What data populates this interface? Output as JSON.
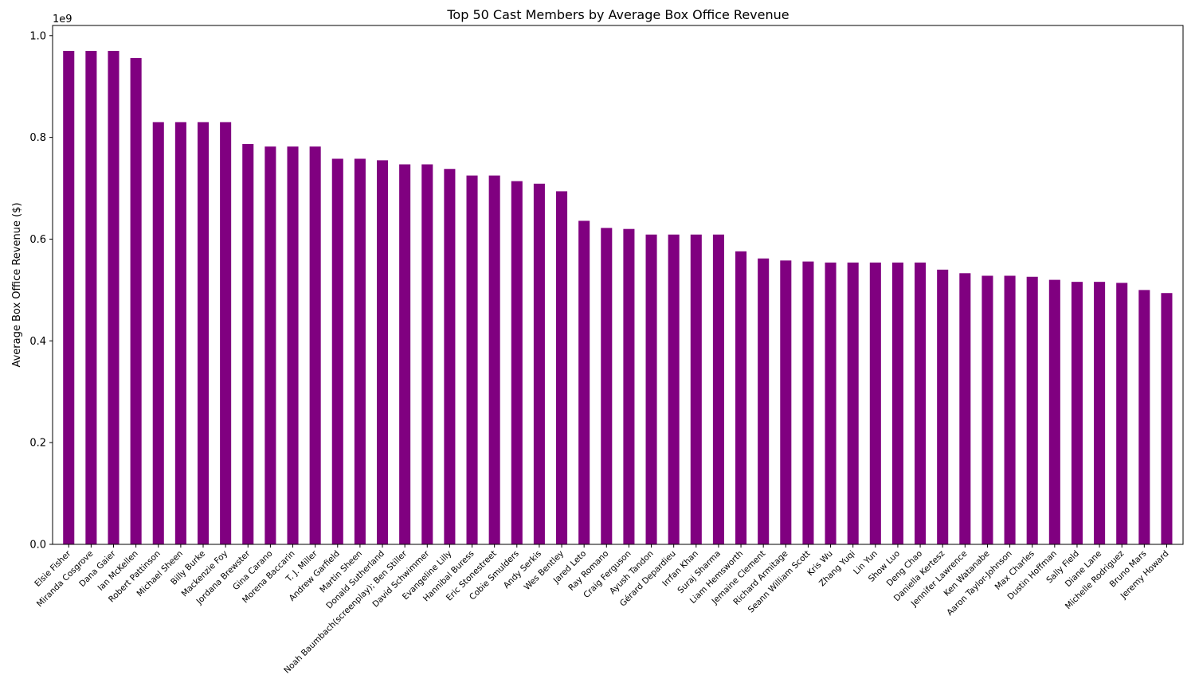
{
  "chart_data": {
    "type": "bar",
    "title": "Top 50 Cast Members by Average Box Office Revenue",
    "xlabel": "",
    "ylabel": "Average Box Office Revenue ($)",
    "y_scale_label": "1e9",
    "ylim": [
      0,
      1.02
    ],
    "y_ticks": [
      0.0,
      0.2,
      0.4,
      0.6,
      0.8,
      1.0
    ],
    "y_tick_labels": [
      "0.0",
      "0.2",
      "0.4",
      "0.6",
      "0.8",
      "1.0"
    ],
    "bar_color": "#800080",
    "grid": false,
    "categories": [
      "Elsie Fisher",
      "Miranda Cosgrove",
      "Dana Gaier",
      "Ian McKellen",
      "Robert Pattinson",
      "Michael Sheen",
      "Billy Burke",
      "Mackenzie Foy",
      "Jordana Brewster",
      "Gina Carano",
      "Morena Baccarin",
      "T. J. Miller",
      "Andrew Garfield",
      "Martin Sheen",
      "Donald Sutherland",
      "Noah Baumbach(screenplay); Ben Stiller",
      "David Schwimmer",
      "Evangeline Lilly",
      "Hannibal Buress",
      "Eric Stonestreet",
      "Cobie Smulders",
      "Andy Serkis",
      "Wes Bentley",
      "Jared Leto",
      "Ray Romano",
      "Craig Ferguson",
      "Ayush Tandon",
      "Gérard Depardieu",
      "Irrfan Khan",
      "Suraj Sharma",
      "Liam Hemsworth",
      "Jemaine Clement",
      "Richard Armitage",
      "Seann William Scott",
      "Kris Wu",
      "Zhang Yuqi",
      "Lin Yun",
      "Show Luo",
      "Deng Chao",
      "Daniella Kertesz",
      "Jennifer Lawrence",
      "Ken Watanabe",
      "Aaron Taylor-Johnson",
      "Max Charles",
      "Dustin Hoffman",
      "Sally Field",
      "Diane Lane",
      "Michelle Rodriguez",
      "Bruno Mars",
      "Jeremy Howard"
    ],
    "values": [
      0.97,
      0.97,
      0.97,
      0.956,
      0.83,
      0.83,
      0.83,
      0.83,
      0.787,
      0.782,
      0.782,
      0.782,
      0.758,
      0.758,
      0.755,
      0.747,
      0.747,
      0.738,
      0.725,
      0.725,
      0.714,
      0.709,
      0.694,
      0.636,
      0.622,
      0.62,
      0.609,
      0.609,
      0.609,
      0.609,
      0.576,
      0.562,
      0.558,
      0.556,
      0.554,
      0.554,
      0.554,
      0.554,
      0.554,
      0.54,
      0.533,
      0.528,
      0.528,
      0.526,
      0.52,
      0.516,
      0.516,
      0.514,
      0.5,
      0.494
    ]
  }
}
